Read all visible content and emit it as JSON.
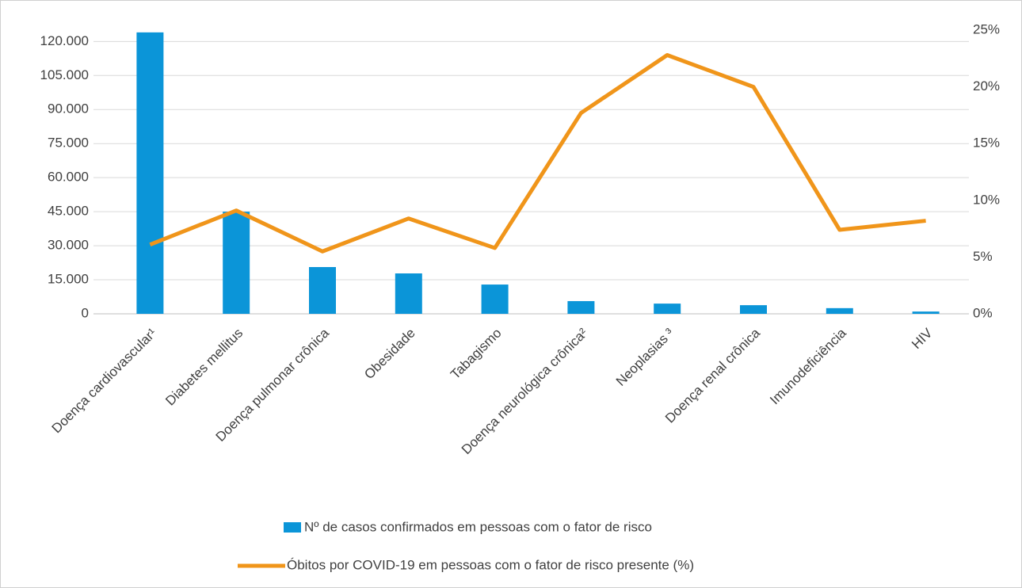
{
  "chart_data": {
    "type": "bar-line",
    "categories": [
      "Doença cardiovascular¹",
      "Diabetes mellitus",
      "Doença pulmonar crônica",
      "Obesidade",
      "Tabagismo",
      "Doença neurológica crônica²",
      "Neoplasias ³",
      "Doença renal crônica",
      "Imunodeficiência",
      "HIV"
    ],
    "series": [
      {
        "name": "Nº de casos confirmados em pessoas com o fator de risco",
        "type": "bar",
        "color": "#0b95d8",
        "axis": "y",
        "values": [
          124000,
          45000,
          20600,
          17800,
          12900,
          5600,
          4500,
          3800,
          2500,
          1000
        ]
      },
      {
        "name": "Óbitos por COVID-19 em pessoas com o fator de risco presente (%)",
        "type": "line",
        "color": "#f0951a",
        "axis": "y2",
        "values": [
          6.1,
          9.1,
          5.5,
          8.4,
          5.8,
          17.7,
          22.8,
          20.0,
          7.4,
          8.2
        ]
      }
    ],
    "ylim": [
      0,
      125000
    ],
    "yticks": [
      0,
      {
        "value": 15000,
        "label": "15.000"
      },
      {
        "value": 30000,
        "label": "30.000"
      },
      {
        "value": 45000,
        "label": "45.000"
      },
      {
        "value": 60000,
        "label": "60.000"
      },
      {
        "value": 75000,
        "label": "75.000"
      },
      {
        "value": 90000,
        "label": "90.000"
      },
      {
        "value": 105000,
        "label": "105.000"
      },
      {
        "value": 120000,
        "label": "120.000"
      }
    ],
    "y2lim": [
      0,
      25
    ],
    "y2ticks": [
      {
        "value": 0,
        "label": "0%"
      },
      {
        "value": 5,
        "label": "5%"
      },
      {
        "value": 10,
        "label": "10%"
      },
      {
        "value": 15,
        "label": "15%"
      },
      {
        "value": 20,
        "label": "20%"
      },
      {
        "value": 25,
        "label": "25%"
      }
    ],
    "grid": true
  }
}
